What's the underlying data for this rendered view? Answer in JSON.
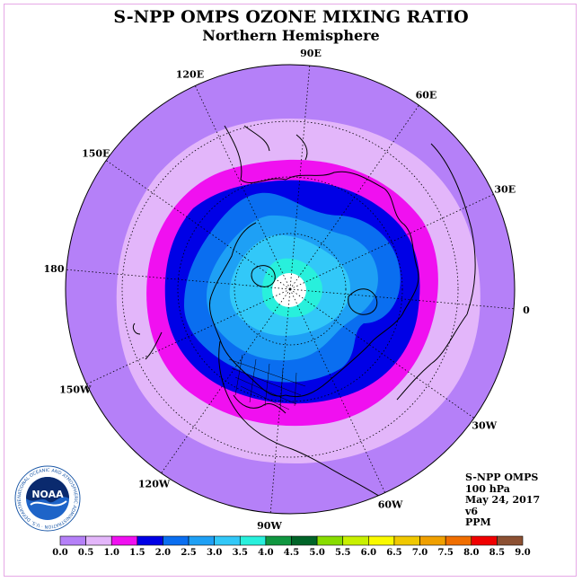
{
  "title": "S-NPP OMPS OZONE MIXING RATIO",
  "subtitle": "Northern Hemisphere",
  "longitude_labels": [
    "90E",
    "60E",
    "30E",
    "0",
    "30W",
    "60W",
    "90W",
    "120W",
    "150W",
    "180",
    "150E",
    "120E"
  ],
  "info": {
    "instrument": "S-NPP OMPS",
    "level": "100 hPa",
    "date": "May 24, 2017",
    "version": "v6",
    "units": "PPM"
  },
  "logo": {
    "text": "NOAA",
    "ring_text": "NATIONAL OCEANIC AND ATMOSPHERIC ADMINISTRATION · U.S. DEPARTMENT OF COMMERCE"
  },
  "colorbar": {
    "labels": [
      "0.0",
      "0.5",
      "1.0",
      "1.5",
      "2.0",
      "2.5",
      "3.0",
      "3.5",
      "4.0",
      "4.5",
      "5.0",
      "5.5",
      "6.0",
      "6.5",
      "7.0",
      "7.5",
      "8.0",
      "8.5",
      "9.0"
    ],
    "colors": [
      "#b580f8",
      "#e3b6fa",
      "#f010f0",
      "#0000e6",
      "#0a6ef0",
      "#1ea0f5",
      "#32c8f8",
      "#28f0dc",
      "#109640",
      "#006428",
      "#88dc00",
      "#c8f000",
      "#fafa00",
      "#f0c800",
      "#f0a000",
      "#f06e00",
      "#f00000",
      "#8c5032"
    ]
  },
  "map_colors": {
    "outer": "#b580f8",
    "band_0_5": "#e3b6fa",
    "band_1_0": "#f010f0",
    "band_1_5": "#0000e6",
    "band_2_0": "#0a6ef0",
    "band_2_5": "#1ea0f5",
    "band_3_0": "#32c8f8",
    "band_3_5": "#28f0dc",
    "missing": "#ffffff"
  }
}
